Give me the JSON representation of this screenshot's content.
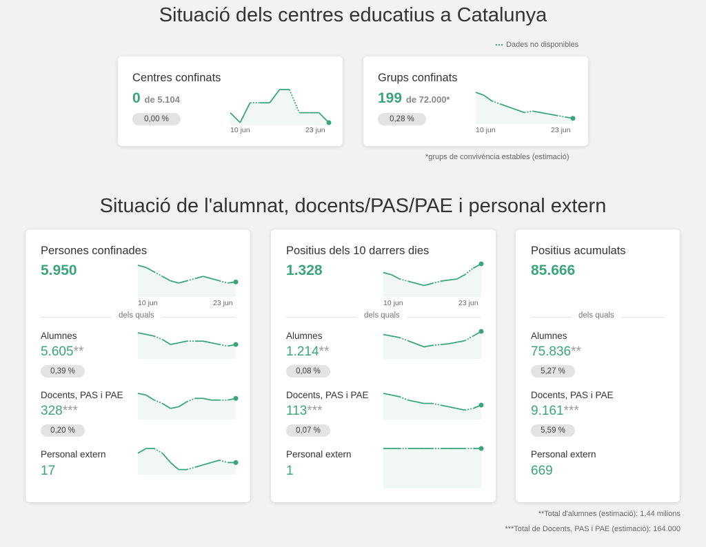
{
  "top": {
    "title": "Situació dels centres educatius a Catalunya",
    "legend_note": "Dades no disponibles",
    "footnote": "*grups de convivència estables (estimació)",
    "cards": [
      {
        "title": "Centres confinats",
        "value": "0",
        "of": "de 5.104",
        "pct": "0,00 %",
        "x_start": "10 jun",
        "x_end": "23 jun"
      },
      {
        "title": "Grups confinats",
        "value": "199",
        "of": "de 72.000*",
        "pct": "0,28 %",
        "x_start": "10 jun",
        "x_end": "23 jun"
      }
    ]
  },
  "bottom": {
    "title": "Situació de l'alumnat, docents/PAS/PAE i personal extern",
    "dels_quals": "dels quals",
    "footnote1": "**Total d'alumnes (estimació): 1,44 milions",
    "footnote2": "***Total de Docents, PAS i PAE (estimació): 164.000",
    "cards": [
      {
        "title": "Persones confinades",
        "value": "5.950",
        "x_start": "10 jun",
        "x_end": "23 jun",
        "rows": [
          {
            "label": "Alumnes",
            "value": "5.605",
            "ast": "**",
            "pct": "0,39 %"
          },
          {
            "label": "Docents, PAS i PAE",
            "value": "328",
            "ast": "***",
            "pct": "0,20 %"
          },
          {
            "label": "Personal extern",
            "value": "17",
            "ast": "",
            "pct": ""
          }
        ]
      },
      {
        "title": "Positius dels 10 darrers dies",
        "value": "1.328",
        "x_start": "10 jun",
        "x_end": "23 jun",
        "rows": [
          {
            "label": "Alumnes",
            "value": "1.214",
            "ast": "**",
            "pct": "0,08 %"
          },
          {
            "label": "Docents, PAS i PAE",
            "value": "113",
            "ast": "***",
            "pct": "0,07 %"
          },
          {
            "label": "Personal extern",
            "value": "1",
            "ast": "",
            "pct": ""
          }
        ]
      },
      {
        "title": "Positius acumulats",
        "value": "85.666",
        "rows": [
          {
            "label": "Alumnes",
            "value": "75.836",
            "ast": "**",
            "pct": "5,27 %"
          },
          {
            "label": "Docents, PAS i PAE",
            "value": "9.161",
            "ast": "***",
            "pct": "5,59 %"
          },
          {
            "label": "Personal extern",
            "value": "669",
            "ast": "",
            "pct": ""
          }
        ]
      }
    ]
  },
  "colors": {
    "accent": "#3aa57a",
    "area": "#f1f7f4",
    "pill": "#e3e3e3"
  },
  "sparklines": {
    "centres": [
      3,
      0,
      6,
      6,
      6,
      10,
      10,
      3,
      3,
      3,
      0
    ],
    "grups": [
      10,
      9,
      7,
      6,
      5,
      4,
      3,
      3.5,
      3,
      2.5,
      2,
      1.5,
      1
    ],
    "persones": [
      13,
      12,
      10,
      8,
      6,
      5,
      6,
      7,
      8,
      7,
      6,
      5,
      5.5
    ],
    "positius10": [
      10,
      9,
      7,
      6,
      5,
      4,
      5,
      6,
      6.5,
      7,
      9,
      12,
      14
    ],
    "p_alumnes": [
      14,
      13,
      12,
      10,
      7,
      8,
      9,
      9,
      9,
      8,
      7,
      6,
      7
    ],
    "p_docents": [
      14,
      13,
      10,
      8,
      5,
      6,
      9,
      11,
      11,
      10,
      10,
      10,
      11
    ],
    "p_extern": [
      4,
      5,
      5,
      4,
      2,
      0.5,
      0.5,
      1,
      1.5,
      2,
      2.5,
      2,
      2
    ],
    "q_alumnes": [
      14,
      13,
      12,
      10,
      8,
      6,
      7,
      7.5,
      8,
      9,
      10,
      13,
      16
    ],
    "q_docents": [
      14,
      13,
      12,
      10,
      9,
      8,
      8,
      7,
      6,
      5,
      4,
      5,
      7
    ],
    "q_extern": [
      1,
      1,
      1,
      1,
      1,
      1,
      1,
      1,
      1,
      1,
      1,
      1,
      1
    ]
  }
}
